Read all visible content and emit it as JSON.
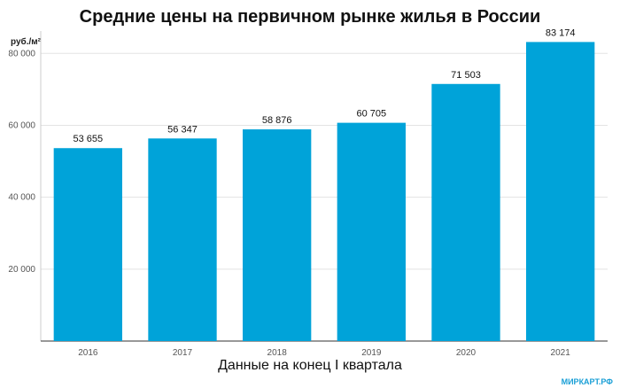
{
  "chart_data": {
    "type": "bar",
    "title": "Средние цены на первичном рынке жилья в России",
    "ylabel": "руб./м²",
    "xlabel": "Данные на конец  I квартала",
    "categories": [
      "2016",
      "2017",
      "2018",
      "2019",
      "2020",
      "2021"
    ],
    "values": [
      53655,
      56347,
      58876,
      60705,
      71503,
      83174
    ],
    "value_labels": [
      "53 655",
      "56 347",
      "58 876",
      "60 705",
      "71 503",
      "83 174"
    ],
    "yticks": [
      20000,
      40000,
      60000,
      80000
    ],
    "ytick_labels": [
      "20 000",
      "40 000",
      "60 000",
      "80 000"
    ],
    "ylim": [
      0,
      85000
    ],
    "grid": true,
    "bar_color": "#00a3d9"
  },
  "watermark": "МИРКАРТ.РФ"
}
